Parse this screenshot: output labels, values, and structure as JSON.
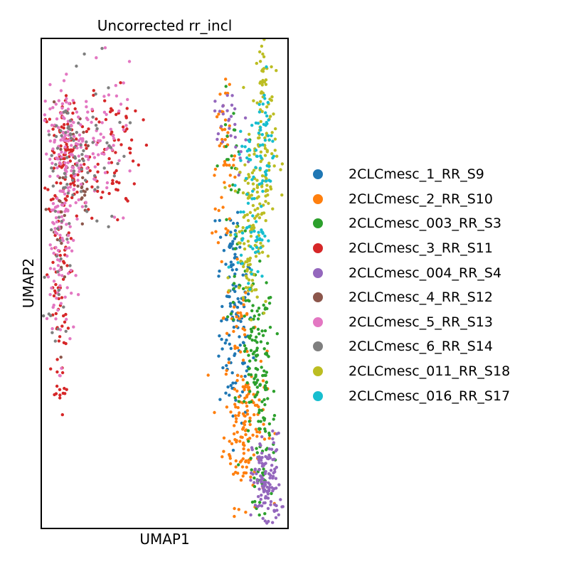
{
  "chart_data": {
    "type": "scatter",
    "title": "Uncorrected rr_incl",
    "xlabel": "UMAP1",
    "ylabel": "UMAP2",
    "grid": false,
    "ticks": "none",
    "legend_position": "right",
    "series": [
      {
        "name": "2CLCmesc_1_RR_S9",
        "color": "#1f77b4",
        "clusters": [
          {
            "cx": 8.2,
            "cy": 7.0,
            "sx": 0.35,
            "sy": 1.1,
            "n": 110
          },
          {
            "cx": 7.9,
            "cy": 9.2,
            "sx": 0.25,
            "sy": 0.5,
            "n": 25
          }
        ]
      },
      {
        "name": "2CLCmesc_2_RR_S10",
        "color": "#ff7f0e",
        "clusters": [
          {
            "cx": 8.6,
            "cy": 4.8,
            "sx": 0.45,
            "sy": 1.0,
            "n": 150
          },
          {
            "cx": 7.7,
            "cy": 11.1,
            "sx": 0.25,
            "sy": 0.9,
            "n": 50
          },
          {
            "cx": 8.3,
            "cy": 7.4,
            "sx": 0.3,
            "sy": 0.7,
            "n": 25
          }
        ]
      },
      {
        "name": "2CLCmesc_003_RR_S3",
        "color": "#2ca02c",
        "clusters": [
          {
            "cx": 9.1,
            "cy": 6.3,
            "sx": 0.35,
            "sy": 1.0,
            "n": 110
          },
          {
            "cx": 9.4,
            "cy": 4.5,
            "sx": 0.3,
            "sy": 0.8,
            "n": 50
          },
          {
            "cx": 8.0,
            "cy": 11.0,
            "sx": 0.25,
            "sy": 0.9,
            "n": 25
          },
          {
            "cx": 8.3,
            "cy": 8.3,
            "sx": 0.25,
            "sy": 0.5,
            "n": 12
          },
          {
            "cx": 9.1,
            "cy": 3.2,
            "sx": 0.15,
            "sy": 0.3,
            "n": 8
          }
        ]
      },
      {
        "name": "2CLCmesc_3_RR_S11",
        "color": "#d62728",
        "clusters": [
          {
            "cx": 1.1,
            "cy": 11.3,
            "sx": 0.55,
            "sy": 0.8,
            "n": 110
          },
          {
            "cx": 3.0,
            "cy": 11.5,
            "sx": 0.6,
            "sy": 0.9,
            "n": 70
          },
          {
            "cx": 0.7,
            "cy": 8.0,
            "sx": 0.25,
            "sy": 1.3,
            "n": 60
          },
          {
            "cx": 0.75,
            "cy": 5.5,
            "sx": 0.1,
            "sy": 0.4,
            "n": 8
          }
        ]
      },
      {
        "name": "2CLCmesc_004_RR_S4",
        "color": "#9467bd",
        "clusters": [
          {
            "cx": 9.5,
            "cy": 3.3,
            "sx": 0.3,
            "sy": 0.6,
            "n": 130
          },
          {
            "cx": 7.8,
            "cy": 12.3,
            "sx": 0.25,
            "sy": 0.3,
            "n": 20
          },
          {
            "cx": 8.3,
            "cy": 11.6,
            "sx": 0.2,
            "sy": 0.4,
            "n": 10
          }
        ]
      },
      {
        "name": "2CLCmesc_4_RR_S12",
        "color": "#8c564b",
        "clusters": [
          {
            "cx": 0.8,
            "cy": 9.5,
            "sx": 0.2,
            "sy": 1.3,
            "n": 20
          },
          {
            "cx": 1.8,
            "cy": 10.6,
            "sx": 0.15,
            "sy": 0.3,
            "n": 12
          },
          {
            "cx": 1.5,
            "cy": 11.3,
            "sx": 0.6,
            "sy": 0.6,
            "n": 10
          }
        ]
      },
      {
        "name": "2CLCmesc_5_RR_S13",
        "color": "#e377c2",
        "clusters": [
          {
            "cx": 1.2,
            "cy": 11.4,
            "sx": 0.6,
            "sy": 0.8,
            "n": 150
          },
          {
            "cx": 0.8,
            "cy": 8.8,
            "sx": 0.28,
            "sy": 1.2,
            "n": 80
          },
          {
            "cx": 2.9,
            "cy": 11.8,
            "sx": 0.5,
            "sy": 0.8,
            "n": 45
          }
        ]
      },
      {
        "name": "2CLCmesc_6_RR_S14",
        "color": "#7f7f7f",
        "clusters": [
          {
            "cx": 1.3,
            "cy": 11.2,
            "sx": 0.6,
            "sy": 0.9,
            "n": 60
          },
          {
            "cx": 0.7,
            "cy": 8.6,
            "sx": 0.25,
            "sy": 1.3,
            "n": 25
          },
          {
            "cx": 2.8,
            "cy": 11.6,
            "sx": 0.5,
            "sy": 0.9,
            "n": 15
          }
        ]
      },
      {
        "name": "2CLCmesc_011_RR_S18",
        "color": "#bcbd22",
        "clusters": [
          {
            "cx": 8.8,
            "cy": 9.4,
            "sx": 0.35,
            "sy": 0.9,
            "n": 110
          },
          {
            "cx": 9.3,
            "cy": 11.4,
            "sx": 0.3,
            "sy": 1.0,
            "n": 90
          },
          {
            "cx": 9.3,
            "cy": 13.4,
            "sx": 0.12,
            "sy": 0.55,
            "n": 20
          }
        ]
      },
      {
        "name": "2CLCmesc_016_RR_S17",
        "color": "#17becf",
        "clusters": [
          {
            "cx": 8.9,
            "cy": 9.5,
            "sx": 0.3,
            "sy": 0.6,
            "n": 50
          },
          {
            "cx": 9.4,
            "cy": 11.6,
            "sx": 0.2,
            "sy": 0.9,
            "n": 50
          },
          {
            "cx": 8.6,
            "cy": 11.5,
            "sx": 0.25,
            "sy": 0.4,
            "n": 15
          }
        ]
      }
    ],
    "xlim": [
      0,
      10.4
    ],
    "ylim": [
      2.2,
      14.2
    ]
  }
}
